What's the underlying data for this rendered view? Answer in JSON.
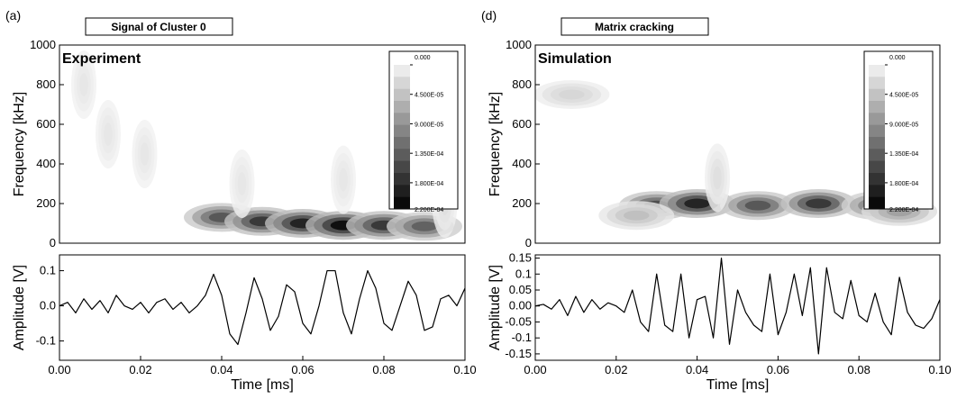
{
  "chart_data": [
    {
      "type": "contour",
      "panel_label": "(a)",
      "title": "Signal of Cluster 0",
      "annotation": "Experiment",
      "ylabel": "Frequency [kHz]",
      "x": [
        0.006,
        0.012,
        0.021,
        0.04,
        0.05,
        0.06,
        0.07,
        0.08,
        0.09,
        0.045,
        0.07,
        0.095
      ],
      "y": [
        800,
        550,
        450,
        130,
        110,
        100,
        90,
        90,
        85,
        300,
        320,
        200
      ],
      "z": [
        1e-05,
        1e-05,
        1e-05,
        0.00015,
        0.00018,
        0.0002,
        0.00022,
        0.00018,
        0.00014,
        1e-05,
        1e-05,
        2e-05
      ],
      "xlim": [
        0,
        0.1
      ],
      "ylim": [
        0,
        1000
      ],
      "yticks": [
        0,
        200,
        400,
        600,
        800,
        1000
      ],
      "zlim": [
        0,
        0.00022
      ],
      "colorbar_ticks": [
        {
          "value": 0,
          "label": "0.000"
        },
        {
          "value": 4.5e-05,
          "label": "4.500E-05"
        },
        {
          "value": 9e-05,
          "label": "9.000E-05"
        },
        {
          "value": 0.000135,
          "label": "1.350E-04"
        },
        {
          "value": 0.00018,
          "label": "1.800E-04"
        },
        {
          "value": 0.00022,
          "label": "2.200E-04"
        }
      ]
    },
    {
      "type": "line",
      "xlabel": "Time [ms]",
      "ylabel": "Amplitude [V]",
      "x": [
        0,
        0.002,
        0.004,
        0.006,
        0.008,
        0.01,
        0.012,
        0.014,
        0.016,
        0.018,
        0.02,
        0.022,
        0.024,
        0.026,
        0.028,
        0.03,
        0.032,
        0.034,
        0.036,
        0.038,
        0.04,
        0.042,
        0.044,
        0.046,
        0.048,
        0.05,
        0.052,
        0.054,
        0.056,
        0.058,
        0.06,
        0.062,
        0.064,
        0.066,
        0.068,
        0.07,
        0.072,
        0.074,
        0.076,
        0.078,
        0.08,
        0.082,
        0.084,
        0.086,
        0.088,
        0.09,
        0.092,
        0.094,
        0.096,
        0.098,
        0.1
      ],
      "series": [
        {
          "color": "#000000",
          "values": [
            0,
            0.01,
            -0.02,
            0.02,
            -0.01,
            0.015,
            -0.02,
            0.03,
            0,
            -0.01,
            0.01,
            -0.02,
            0.01,
            0.02,
            -0.01,
            0.01,
            -0.02,
            0,
            0.03,
            0.09,
            0.03,
            -0.08,
            -0.11,
            -0.02,
            0.08,
            0.02,
            -0.07,
            -0.03,
            0.06,
            0.04,
            -0.05,
            -0.08,
            0,
            0.1,
            0.1,
            -0.02,
            -0.08,
            0.02,
            0.1,
            0.05,
            -0.05,
            -0.07,
            0,
            0.07,
            0.03,
            -0.07,
            -0.06,
            0.02,
            0.03,
            0,
            0.05
          ]
        }
      ],
      "xlim": [
        0,
        0.1
      ],
      "ylim": [
        -0.155,
        0.145
      ],
      "xticks": [
        {
          "value": 0,
          "label": "0.00"
        },
        0.02,
        0.04,
        0.06,
        0.08,
        {
          "value": 0.1,
          "label": "0.10"
        }
      ],
      "yticks": [
        -0.1,
        {
          "value": 0,
          "label": "0.0"
        },
        0.1
      ]
    },
    {
      "type": "contour",
      "panel_label": "(d)",
      "title": "Matrix cracking",
      "annotation": "Simulation",
      "ylabel": "Frequency [kHz]",
      "x": [
        0.009,
        0.03,
        0.04,
        0.055,
        0.07,
        0.085,
        0.045,
        0.09,
        0.025
      ],
      "y": [
        750,
        190,
        200,
        190,
        200,
        190,
        330,
        160,
        140
      ],
      "z": [
        3e-05,
        0.00016,
        0.0002,
        0.00015,
        0.00018,
        0.00013,
        2e-05,
        8e-05,
        5e-05
      ],
      "xlim": [
        0,
        0.1
      ],
      "ylim": [
        0,
        1000
      ],
      "yticks": [
        0,
        200,
        400,
        600,
        800,
        1000
      ],
      "zlim": [
        0,
        0.00022
      ],
      "colorbar_ticks": [
        {
          "value": 0,
          "label": "0.000"
        },
        {
          "value": 4.5e-05,
          "label": "4.500E-05"
        },
        {
          "value": 9e-05,
          "label": "9.000E-05"
        },
        {
          "value": 0.000135,
          "label": "1.350E-04"
        },
        {
          "value": 0.00018,
          "label": "1.800E-04"
        },
        {
          "value": 0.00022,
          "label": "2.200E-04"
        }
      ]
    },
    {
      "type": "line",
      "xlabel": "Time [ms]",
      "ylabel": "Amplitude [V]",
      "x": [
        0,
        0.002,
        0.004,
        0.006,
        0.008,
        0.01,
        0.012,
        0.014,
        0.016,
        0.018,
        0.02,
        0.022,
        0.024,
        0.026,
        0.028,
        0.03,
        0.032,
        0.034,
        0.036,
        0.038,
        0.04,
        0.042,
        0.044,
        0.046,
        0.048,
        0.05,
        0.052,
        0.054,
        0.056,
        0.058,
        0.06,
        0.062,
        0.064,
        0.066,
        0.068,
        0.07,
        0.072,
        0.074,
        0.076,
        0.078,
        0.08,
        0.082,
        0.084,
        0.086,
        0.088,
        0.09,
        0.092,
        0.094,
        0.096,
        0.098,
        0.1
      ],
      "series": [
        {
          "color": "#000000",
          "values": [
            0,
            0.005,
            -0.01,
            0.02,
            -0.03,
            0.03,
            -0.02,
            0.02,
            -0.01,
            0.01,
            0,
            -0.02,
            0.05,
            -0.05,
            -0.08,
            0.1,
            -0.06,
            -0.08,
            0.1,
            -0.1,
            0.02,
            0.03,
            -0.1,
            0.15,
            -0.12,
            0.05,
            -0.02,
            -0.06,
            -0.08,
            0.1,
            -0.09,
            -0.02,
            0.1,
            -0.03,
            0.12,
            -0.15,
            0.12,
            -0.02,
            -0.04,
            0.08,
            -0.03,
            -0.05,
            0.04,
            -0.05,
            -0.09,
            0.09,
            -0.02,
            -0.06,
            -0.07,
            -0.04,
            0.02
          ]
        }
      ],
      "xlim": [
        0,
        0.1
      ],
      "ylim": [
        -0.17,
        0.16
      ],
      "xticks": [
        {
          "value": 0,
          "label": "0.00"
        },
        0.02,
        0.04,
        0.06,
        0.08,
        {
          "value": 0.1,
          "label": "0.10"
        }
      ],
      "yticks": [
        -0.15,
        -0.1,
        -0.05,
        {
          "value": 0,
          "label": "0.00"
        },
        0.05,
        0.1,
        0.15
      ]
    }
  ]
}
